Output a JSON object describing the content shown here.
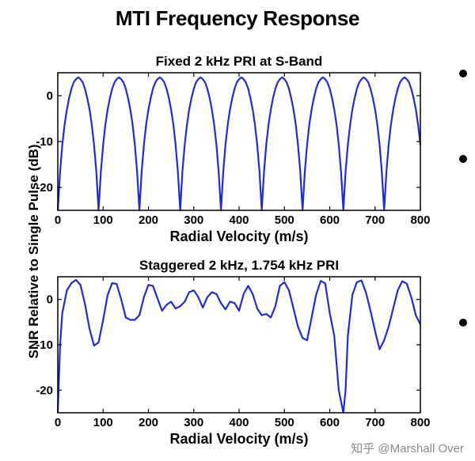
{
  "page": {
    "title": "MTI Frequency Response",
    "watermark": "知乎 @Marshall Over"
  },
  "chart_data": [
    {
      "type": "line",
      "title": "Fixed 2 kHz PRI at S-Band",
      "xlabel": "Radial Velocity (m/s)",
      "ylabel": "SNR Relative to Single Pulse (dB)",
      "xlim": [
        0,
        800
      ],
      "ylim": [
        -25,
        5
      ],
      "xticks": [
        0,
        100,
        200,
        300,
        400,
        500,
        600,
        700,
        800
      ],
      "yticks": [
        0,
        -10,
        -20
      ],
      "grid": false,
      "color": "#1f2ec9",
      "series": [
        {
          "x": [
            0,
            5,
            10,
            15,
            20,
            25,
            30,
            35,
            40,
            45,
            50,
            55,
            60,
            65,
            70,
            75,
            80,
            85,
            90,
            95,
            100,
            105,
            110,
            115,
            120,
            125,
            130,
            135,
            140,
            145,
            150,
            155,
            160,
            165,
            170,
            175,
            180,
            185,
            190,
            195,
            200,
            205,
            210,
            215,
            220,
            225,
            230,
            235,
            240,
            245,
            250,
            255,
            260,
            265,
            270,
            275,
            280,
            285,
            290,
            295,
            300,
            305,
            310,
            315,
            320,
            325,
            330,
            335,
            340,
            345,
            350,
            355,
            360,
            365,
            370,
            375,
            380,
            385,
            390,
            395,
            400,
            405,
            410,
            415,
            420,
            425,
            430,
            435,
            440,
            445,
            450,
            455,
            460,
            465,
            470,
            475,
            480,
            485,
            490,
            495,
            500,
            505,
            510,
            515,
            520,
            525,
            530,
            535,
            540,
            545,
            550,
            555,
            560,
            565,
            570,
            575,
            580,
            585,
            590,
            595,
            600,
            605,
            610,
            615,
            620,
            625,
            630,
            635,
            640,
            645,
            650,
            655,
            660,
            665,
            670,
            675,
            680,
            685,
            690,
            695,
            700,
            705,
            710,
            715,
            720,
            725,
            730,
            735,
            740,
            745,
            750,
            755,
            760,
            765,
            770,
            775,
            780,
            785,
            790,
            795,
            800
          ],
          "y": [
            -25,
            -16.6,
            -10.7,
            -6.3,
            -3.0,
            -0.5,
            1.5,
            2.9,
            3.6,
            4.0,
            3.6,
            2.9,
            1.5,
            -0.5,
            -3.0,
            -6.3,
            -10.7,
            -16.6,
            -25,
            -16.6,
            -10.7,
            -6.3,
            -3.0,
            -0.5,
            1.5,
            2.9,
            3.6,
            4.0,
            3.6,
            2.9,
            1.5,
            -0.5,
            -3.0,
            -6.3,
            -10.7,
            -16.6,
            -25,
            -16.6,
            -10.7,
            -6.3,
            -3.0,
            -0.5,
            1.5,
            2.9,
            3.6,
            4.0,
            3.6,
            2.9,
            1.5,
            -0.5,
            -3.0,
            -6.3,
            -10.7,
            -16.6,
            -25,
            -16.6,
            -10.7,
            -6.3,
            -3.0,
            -0.5,
            1.5,
            2.9,
            3.6,
            4.0,
            3.6,
            2.9,
            1.5,
            -0.5,
            -3.0,
            -6.3,
            -10.7,
            -16.6,
            -25,
            -16.6,
            -10.7,
            -6.3,
            -3.0,
            -0.5,
            1.5,
            2.9,
            3.6,
            4.0,
            3.6,
            2.9,
            1.5,
            -0.5,
            -3.0,
            -6.3,
            -10.7,
            -16.6,
            -25,
            -16.6,
            -10.7,
            -6.3,
            -3.0,
            -0.5,
            1.5,
            2.9,
            3.6,
            4.0,
            3.6,
            2.9,
            1.5,
            -0.5,
            -3.0,
            -6.3,
            -10.7,
            -16.6,
            -25,
            -16.6,
            -10.7,
            -6.3,
            -3.0,
            -0.5,
            1.5,
            2.9,
            3.6,
            4.0,
            3.6,
            2.9,
            1.5,
            -0.5,
            -3.0,
            -6.3,
            -10.7,
            -16.6,
            -25,
            -16.6,
            -10.7,
            -6.3,
            -3.0,
            -0.5,
            1.5,
            2.9,
            3.6,
            4.0,
            3.6,
            2.9,
            1.5,
            -0.5,
            -3.0,
            -6.3,
            -10.7,
            -16.6,
            -25,
            -16.6,
            -10.7,
            -6.3,
            -3.0,
            -0.5,
            1.5,
            2.9,
            3.6,
            4.0,
            3.6,
            2.9,
            1.5,
            -0.5,
            -3.0,
            -6.3,
            -10.7
          ]
        }
      ]
    },
    {
      "type": "line",
      "title": "Staggered 2 kHz, 1.754 kHz PRI",
      "xlabel": "Radial Velocity (m/s)",
      "ylabel": "SNR Relative to Single Pulse (dB)",
      "xlim": [
        0,
        800
      ],
      "ylim": [
        -25,
        5
      ],
      "xticks": [
        0,
        100,
        200,
        300,
        400,
        500,
        600,
        700,
        800
      ],
      "yticks": [
        0,
        -10,
        -20
      ],
      "grid": false,
      "color": "#1f2ec9",
      "series": [
        {
          "x": [
            0,
            5,
            10,
            20,
            30,
            40,
            50,
            60,
            70,
            80,
            90,
            100,
            110,
            120,
            130,
            140,
            150,
            160,
            170,
            180,
            190,
            200,
            210,
            220,
            230,
            240,
            250,
            260,
            270,
            280,
            290,
            300,
            310,
            320,
            330,
            340,
            350,
            360,
            370,
            380,
            390,
            400,
            410,
            420,
            430,
            440,
            450,
            460,
            470,
            480,
            490,
            500,
            510,
            520,
            530,
            540,
            550,
            560,
            570,
            580,
            590,
            600,
            610,
            620,
            630,
            635,
            640,
            650,
            660,
            670,
            680,
            690,
            700,
            710,
            720,
            730,
            740,
            750,
            760,
            770,
            780,
            790,
            800
          ],
          "y": [
            -25,
            -10,
            -3,
            2.0,
            3.6,
            4.3,
            3.2,
            -1.0,
            -6.5,
            -10.2,
            -9.5,
            -4.5,
            1.0,
            3.6,
            3.4,
            0.0,
            -4.0,
            -4.5,
            -4.5,
            -3.5,
            0.5,
            3.2,
            3.0,
            0.2,
            -2.5,
            -1.2,
            -0.5,
            -2.0,
            -1.5,
            -0.5,
            1.6,
            2.0,
            0.5,
            -1.8,
            0.5,
            1.6,
            1.2,
            -0.8,
            -2.2,
            -0.5,
            -0.8,
            -2.5,
            1.2,
            3.0,
            1.2,
            -2.0,
            -3.5,
            -3.2,
            -4.0,
            -1.5,
            3.0,
            3.8,
            2.0,
            -2.0,
            -6.0,
            -8.5,
            -9.0,
            -4.0,
            1.0,
            4.1,
            3.5,
            -3.0,
            -8.0,
            -20.0,
            -25,
            -20.0,
            -8.0,
            1.0,
            3.8,
            4.2,
            1.5,
            -2.5,
            -7.0,
            -11.0,
            -9.0,
            -6.0,
            -2.0,
            2.0,
            4.0,
            3.5,
            0.5,
            -3.5,
            -5.5
          ]
        }
      ]
    }
  ]
}
